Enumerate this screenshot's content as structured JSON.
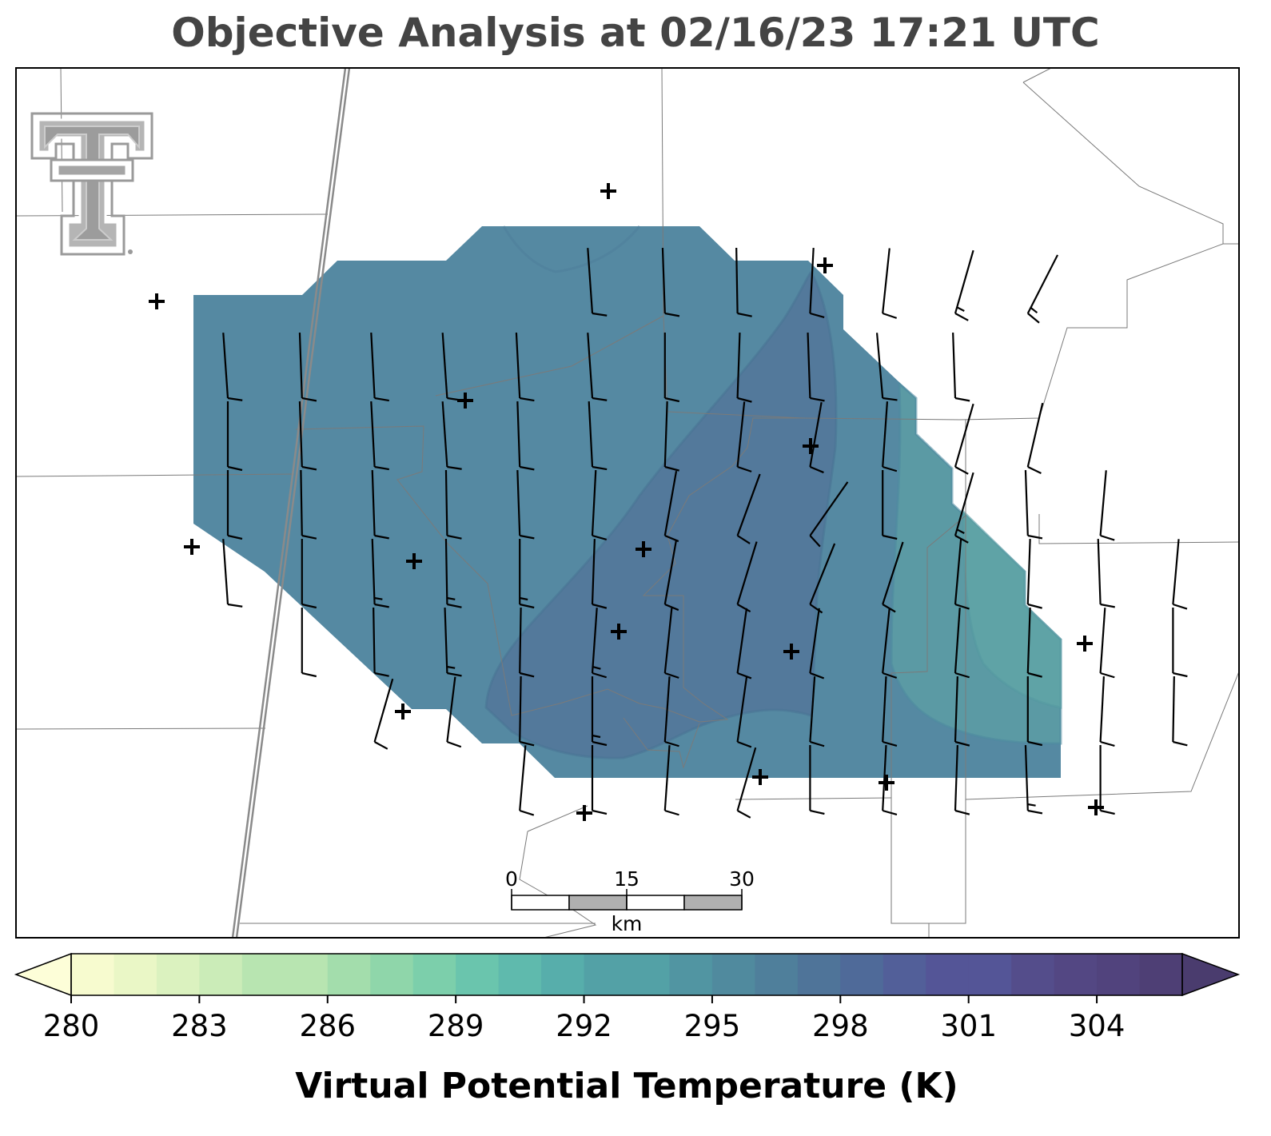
{
  "title": "Objective Analysis at 02/16/23 17:21 UTC",
  "colorbar": {
    "label": "Virtual Potential Temperature (K)",
    "ticks": [
      "280",
      "283",
      "286",
      "289",
      "292",
      "295",
      "298",
      "301",
      "304"
    ],
    "min": 280,
    "max": 307,
    "step": 1,
    "colors": [
      "#f7fbcf",
      "#eaf7c6",
      "#dbf2bf",
      "#cbecb8",
      "#b8e5b1",
      "#a3ddac",
      "#8fd6aa",
      "#7ccfab",
      "#6ac5ad",
      "#5fbaad",
      "#57aeab",
      "#53a1a6",
      "#5195a2",
      "#508a9e",
      "#4f7f9b",
      "#4f7499",
      "#4f6a99",
      "#525f99",
      "#545597",
      "#544d8b",
      "#534783",
      "#51437d",
      "#4e3f75"
    ],
    "under_color": "#fdfed8",
    "over_color": "#4a3c6e"
  },
  "scalebar": {
    "labels": [
      "0",
      "15",
      "30"
    ],
    "unit": "km"
  },
  "logo": "texas-tech-double-t-logo",
  "field": {
    "variable": "Virtual Potential Temperature",
    "region_fill": "#5589a2",
    "warm_core_fill": "#53799b",
    "east_fill": "#5b9aa4",
    "se_fill": "#5fa3a6"
  },
  "wind_grid": {
    "rows": [
      {
        "lat": 7,
        "cells": [
          [
            5,
            176,
            10
          ],
          [
            6,
            178,
            10
          ],
          [
            7,
            179,
            10
          ],
          [
            8,
            183,
            10
          ],
          [
            9,
            186,
            12
          ],
          [
            10,
            196,
            15
          ],
          [
            11,
            207,
            18
          ]
        ]
      },
      {
        "lat": 6,
        "cells": [
          [
            0,
            176,
            12
          ],
          [
            1,
            178,
            10
          ],
          [
            2,
            177,
            10
          ],
          [
            3,
            176,
            10
          ],
          [
            4,
            177,
            10
          ],
          [
            5,
            176,
            10
          ],
          [
            6,
            180,
            10
          ],
          [
            7,
            182,
            10
          ],
          [
            8,
            178,
            10
          ],
          [
            9,
            175,
            10
          ],
          [
            10,
            178,
            10
          ]
        ]
      },
      {
        "lat": 5,
        "cells": [
          [
            0,
            180,
            10
          ],
          [
            1,
            178,
            10
          ],
          [
            2,
            177,
            10
          ],
          [
            3,
            176,
            10
          ],
          [
            4,
            178,
            10
          ],
          [
            5,
            177,
            10
          ],
          [
            6,
            182,
            10
          ],
          [
            7,
            186,
            10
          ],
          [
            8,
            190,
            10
          ],
          [
            9,
            184,
            10
          ],
          [
            10,
            196,
            10
          ],
          [
            11,
            193,
            10
          ]
        ]
      },
      {
        "lat": 4,
        "cells": [
          [
            0,
            180,
            10
          ],
          [
            1,
            179,
            10
          ],
          [
            2,
            178,
            10
          ],
          [
            3,
            179,
            10
          ],
          [
            4,
            178,
            10
          ],
          [
            5,
            183,
            10
          ],
          [
            6,
            190,
            10
          ],
          [
            7,
            200,
            10
          ],
          [
            8,
            215,
            10
          ],
          [
            9,
            180,
            10
          ],
          [
            10,
            196,
            15
          ],
          [
            11,
            178,
            10
          ],
          [
            12,
            185,
            10
          ]
        ]
      },
      {
        "lat": 3,
        "cells": [
          [
            0,
            176,
            10
          ],
          [
            1,
            180,
            10
          ],
          [
            2,
            178,
            15
          ],
          [
            3,
            179,
            15
          ],
          [
            4,
            180,
            15
          ],
          [
            5,
            182,
            10
          ],
          [
            6,
            190,
            10
          ],
          [
            7,
            197,
            10
          ],
          [
            8,
            202,
            10
          ],
          [
            9,
            198,
            10
          ],
          [
            10,
            185,
            10
          ],
          [
            11,
            182,
            10
          ],
          [
            12,
            178,
            10
          ],
          [
            13,
            185,
            10
          ]
        ]
      },
      {
        "lat": 2,
        "cells": [
          [
            1,
            180,
            10
          ],
          [
            2,
            179,
            10
          ],
          [
            3,
            178,
            15
          ],
          [
            4,
            181,
            10
          ],
          [
            5,
            184,
            15
          ],
          [
            6,
            186,
            10
          ],
          [
            7,
            188,
            10
          ],
          [
            8,
            188,
            10
          ],
          [
            9,
            186,
            10
          ],
          [
            10,
            184,
            10
          ],
          [
            11,
            182,
            10
          ],
          [
            12,
            184,
            10
          ],
          [
            13,
            180,
            10
          ]
        ]
      },
      {
        "lat": 1,
        "cells": [
          [
            2,
            196,
            10
          ],
          [
            3,
            187,
            10
          ],
          [
            4,
            181,
            10
          ],
          [
            5,
            180,
            15
          ],
          [
            6,
            184,
            10
          ],
          [
            7,
            188,
            10
          ],
          [
            8,
            184,
            10
          ],
          [
            9,
            183,
            10
          ],
          [
            10,
            182,
            10
          ],
          [
            11,
            180,
            10
          ],
          [
            12,
            183,
            10
          ],
          [
            13,
            181,
            10
          ]
        ]
      },
      {
        "lat": 0,
        "cells": [
          [
            4,
            185,
            10
          ],
          [
            5,
            180,
            10
          ],
          [
            6,
            184,
            10
          ],
          [
            7,
            196,
            10
          ],
          [
            8,
            180,
            10
          ],
          [
            9,
            183,
            10
          ],
          [
            10,
            182,
            10
          ],
          [
            11,
            178,
            15
          ],
          [
            12,
            180,
            10
          ]
        ]
      }
    ]
  },
  "stations": [
    [
      761,
      239
    ],
    [
      1032,
      332
    ],
    [
      196,
      377
    ],
    [
      582,
      501
    ],
    [
      1014,
      558
    ],
    [
      240,
      684
    ],
    [
      518,
      702
    ],
    [
      805,
      687
    ],
    [
      774,
      790
    ],
    [
      990,
      815
    ],
    [
      1357,
      805
    ],
    [
      504,
      890
    ],
    [
      951,
      972
    ],
    [
      1109,
      979
    ],
    [
      731,
      1017
    ],
    [
      1371,
      1010
    ]
  ]
}
